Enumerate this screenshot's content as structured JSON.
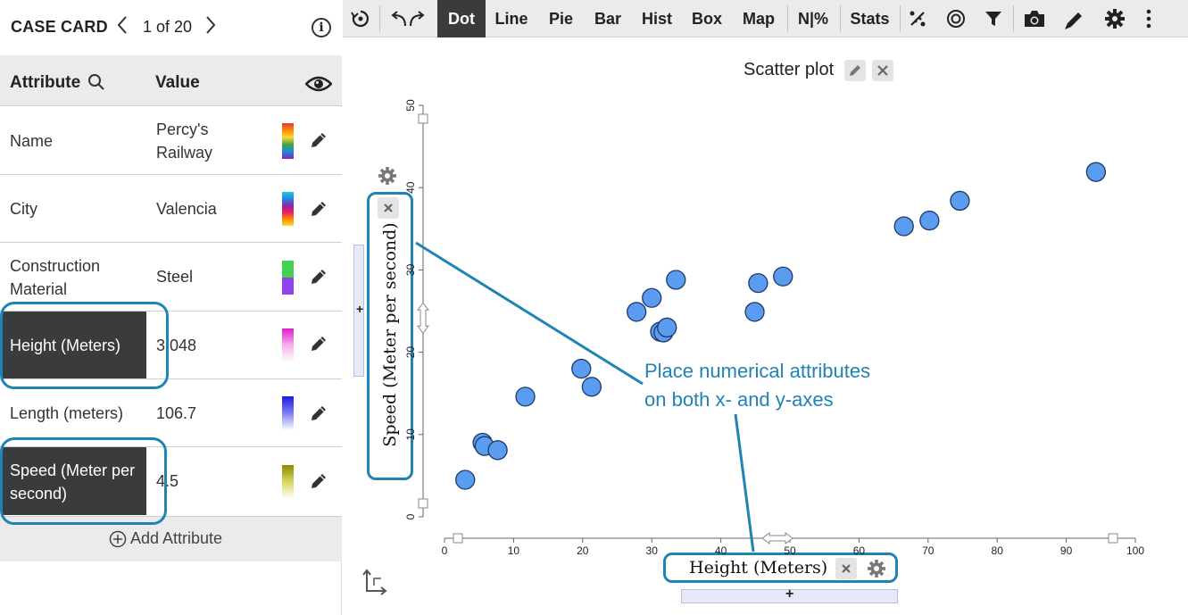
{
  "case_card": {
    "title": "CASE CARD",
    "position_text": "1 of 20",
    "attribute_header": "Attribute",
    "value_header": "Value",
    "add_attribute": "Add Attribute",
    "rows": [
      {
        "name": "Name",
        "value": "Percy's Railway",
        "swatch": "rainbow"
      },
      {
        "name": "City",
        "value": "Valencia",
        "swatch": "rainbow"
      },
      {
        "name": "Construction Material",
        "value": "Steel",
        "swatch": "green-purple"
      },
      {
        "name": "Height (Meters)",
        "value": "3.048",
        "swatch": "magenta"
      },
      {
        "name": "Length (meters)",
        "value": "106.7",
        "swatch": "blue"
      },
      {
        "name": "Speed (Meter per second)",
        "value": "4.5",
        "swatch": "olive"
      }
    ]
  },
  "toolbar": {
    "plot_types": [
      "Dot",
      "Line",
      "Pie",
      "Bar",
      "Hist",
      "Box",
      "Map",
      "N|%",
      "Stats"
    ],
    "active": "Dot",
    "icons": [
      "rerandomize-icon",
      "undo-redo-icon",
      "percent-icon",
      "target-icon",
      "filter-icon",
      "camera-icon",
      "pencil-icon",
      "gear-icon",
      "more-icon"
    ]
  },
  "graph": {
    "title": "Scatter plot",
    "annotation_line1": "Place numerical attributes",
    "annotation_line2": "on both x- and y-axes",
    "add_x": "+",
    "add_y": "+"
  },
  "chart_data": {
    "type": "scatter",
    "xlabel": "Height (Meters)",
    "ylabel": "Speed (Meter per second)",
    "xlim": [
      0,
      100
    ],
    "ylim": [
      0,
      50
    ],
    "xticks": [
      0,
      10,
      20,
      30,
      40,
      50,
      60,
      70,
      80,
      90,
      100
    ],
    "yticks": [
      0,
      10,
      20,
      30,
      40,
      50
    ],
    "point_color": "#5b9bf0",
    "points": [
      {
        "x": 3.0,
        "y": 4.5
      },
      {
        "x": 5.5,
        "y": 9.0
      },
      {
        "x": 5.8,
        "y": 8.6
      },
      {
        "x": 7.7,
        "y": 8.1
      },
      {
        "x": 11.7,
        "y": 14.6
      },
      {
        "x": 19.8,
        "y": 18.0
      },
      {
        "x": 21.3,
        "y": 15.8
      },
      {
        "x": 27.8,
        "y": 24.9
      },
      {
        "x": 30.0,
        "y": 26.6
      },
      {
        "x": 31.2,
        "y": 22.5
      },
      {
        "x": 31.7,
        "y": 22.4
      },
      {
        "x": 32.2,
        "y": 23.0
      },
      {
        "x": 33.5,
        "y": 28.8
      },
      {
        "x": 44.9,
        "y": 24.9
      },
      {
        "x": 45.4,
        "y": 28.4
      },
      {
        "x": 49.0,
        "y": 29.2
      },
      {
        "x": 66.5,
        "y": 35.3
      },
      {
        "x": 70.2,
        "y": 36.0
      },
      {
        "x": 74.6,
        "y": 38.4
      },
      {
        "x": 94.3,
        "y": 41.9
      }
    ]
  }
}
